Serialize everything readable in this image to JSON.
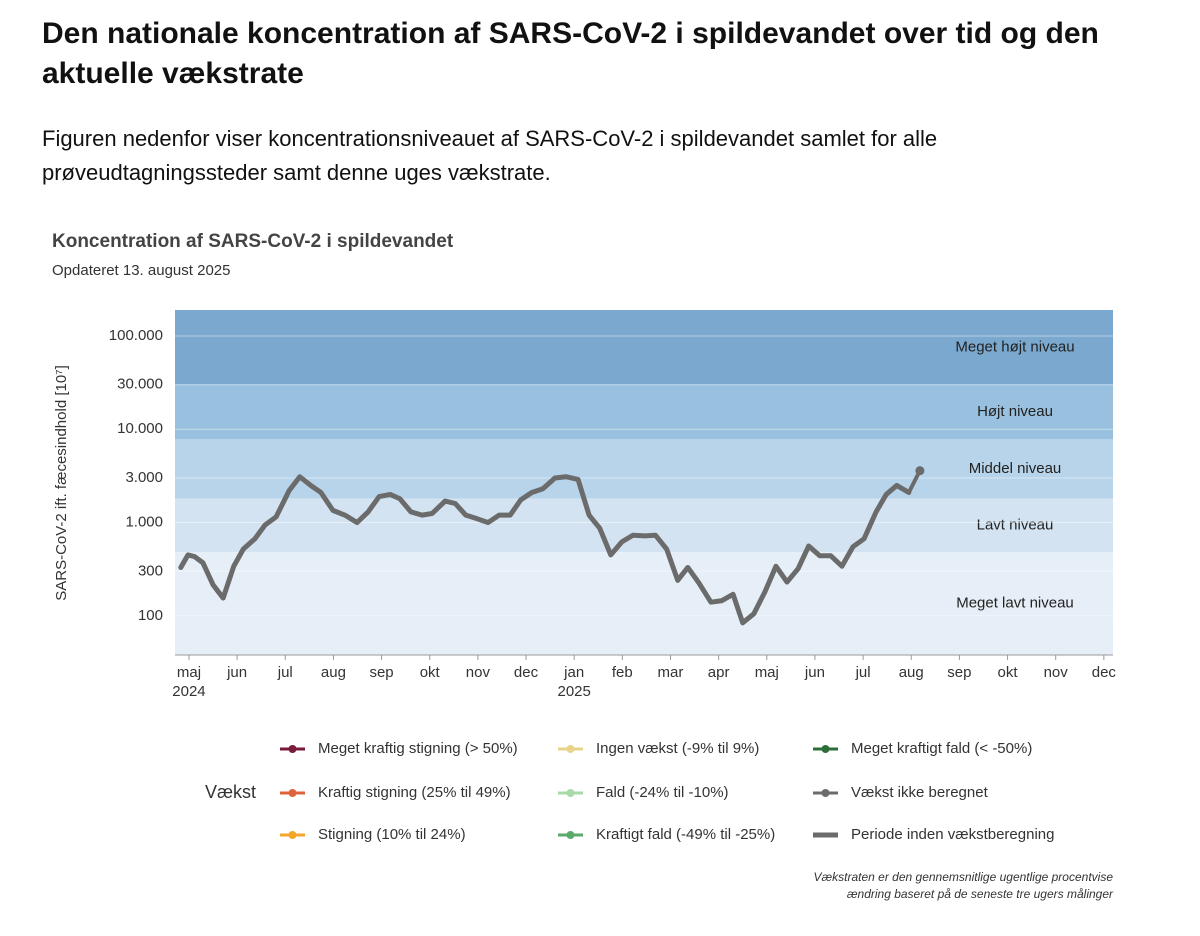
{
  "header": {
    "title": "Den nationale koncentration af SARS-CoV-2 i spildevandet over tid og den aktuelle vækstrate",
    "description": "Figuren nedenfor viser koncentrationsniveauet af SARS-CoV-2 i spildevandet samlet for alle prøveudtagningssteder samt denne uges vækstrate."
  },
  "chart_data": {
    "type": "line",
    "title": "Koncentration af SARS-CoV-2 i spildevandet",
    "subtitle": "Opdateret 13. august 2025",
    "ylabel": "SARS-CoV-2 ift. fæcesindhold [10⁷]",
    "log_y": true,
    "ylim": [
      38,
      190000
    ],
    "yticks": [
      {
        "value": 100000,
        "label": "100.000"
      },
      {
        "value": 30000,
        "label": "30.000"
      },
      {
        "value": 10000,
        "label": "10.000"
      },
      {
        "value": 3000,
        "label": "3.000"
      },
      {
        "value": 1000,
        "label": "1.000"
      },
      300,
      100
    ],
    "grid": true,
    "xlim": [
      3.71,
      23.19
    ],
    "xticks": [
      {
        "value": 4,
        "label": "maj"
      },
      {
        "value": 5,
        "label": "jun"
      },
      {
        "value": 6,
        "label": "jul"
      },
      {
        "value": 7,
        "label": "aug"
      },
      {
        "value": 8,
        "label": "sep"
      },
      {
        "value": 9,
        "label": "okt"
      },
      {
        "value": 10,
        "label": "nov"
      },
      {
        "value": 11,
        "label": "dec"
      },
      {
        "value": 12,
        "label": "jan"
      },
      {
        "value": 13,
        "label": "feb"
      },
      {
        "value": 14,
        "label": "mar"
      },
      {
        "value": 15,
        "label": "apr"
      },
      {
        "value": 16,
        "label": "maj"
      },
      {
        "value": 17,
        "label": "jun"
      },
      {
        "value": 18,
        "label": "jul"
      },
      {
        "value": 19,
        "label": "aug"
      },
      {
        "value": 20,
        "label": "sep"
      },
      {
        "value": 21,
        "label": "okt"
      },
      {
        "value": 22,
        "label": "nov"
      },
      {
        "value": 23,
        "label": "dec"
      }
    ],
    "year_labels": [
      {
        "value": 4,
        "label": "2024"
      },
      {
        "value": 12,
        "label": "2025"
      }
    ],
    "bands": [
      {
        "name": "Meget højt niveau",
        "from": 30000,
        "to": 190000,
        "color": "#7aa8cf"
      },
      {
        "name": "Højt niveau",
        "from": 7800,
        "to": 30000,
        "color": "#99c0de"
      },
      {
        "name": "Middel niveau",
        "from": 1800,
        "to": 7800,
        "color": "#b8d4ea"
      },
      {
        "name": "Lavt niveau",
        "from": 480,
        "to": 1800,
        "color": "#d3e3f2"
      },
      {
        "name": "Meget lavt niveau",
        "from": 38,
        "to": 480,
        "color": "#e6eff8"
      }
    ],
    "series": [
      {
        "name": "Periode inden vækstberegning",
        "color": "#6b6b6b",
        "x": [
          3.83,
          3.98,
          4.12,
          4.29,
          4.5,
          4.71,
          4.93,
          5.13,
          5.37,
          5.58,
          5.81,
          6.08,
          6.3,
          6.53,
          6.74,
          6.99,
          7.24,
          7.49,
          7.72,
          7.95,
          8.18,
          8.38,
          8.61,
          8.84,
          9.05,
          9.32,
          9.53,
          9.75,
          9.98,
          10.21,
          10.44,
          10.67,
          10.89,
          11.12,
          11.35,
          11.6,
          11.83,
          12.08,
          12.31,
          12.53,
          12.76,
          12.99,
          13.22,
          13.47,
          13.69,
          13.92,
          14.15,
          14.36,
          14.59,
          14.84,
          15.06,
          15.3,
          15.5,
          15.73,
          15.96,
          16.19,
          16.42,
          16.65,
          16.87,
          17.1,
          17.33,
          17.56,
          17.79,
          18.02,
          18.27,
          18.48,
          18.7,
          18.95
        ],
        "values": [
          330,
          450,
          430,
          370,
          215,
          155,
          340,
          520,
          670,
          940,
          1150,
          2200,
          3100,
          2500,
          2100,
          1350,
          1200,
          1000,
          1300,
          1900,
          2000,
          1800,
          1300,
          1200,
          1250,
          1700,
          1600,
          1200,
          1100,
          1000,
          1200,
          1200,
          1750,
          2100,
          2300,
          3000,
          3100,
          2900,
          1200,
          870,
          450,
          620,
          730,
          720,
          730,
          520,
          240,
          330,
          225,
          140,
          145,
          170,
          84,
          105,
          180,
          340,
          230,
          320,
          560,
          440,
          440,
          340,
          550,
          670,
          1300,
          2000,
          2500,
          2100
        ]
      },
      {
        "name": "Vækst ikke beregnet",
        "color": "#6b6b6b",
        "x": [
          19.18
        ],
        "values": [
          3600
        ]
      }
    ],
    "legend_title": "Vækst",
    "growth_categories": [
      {
        "name": "Meget kraftig stigning (> 50%)",
        "color": "#7b1a3a"
      },
      {
        "name": "Kraftig stigning (25% til 49%)",
        "color": "#e0623c"
      },
      {
        "name": "Stigning (10% til 24%)",
        "color": "#f4a52a"
      },
      {
        "name": "Ingen vækst (-9% til 9%)",
        "color": "#e8d488"
      },
      {
        "name": "Fald (-24% til -10%)",
        "color": "#a8dba8"
      },
      {
        "name": "Kraftigt fald (-49% til -25%)",
        "color": "#5aab6a"
      },
      {
        "name": "Meget kraftigt fald (< -50%)",
        "color": "#2e6e3a"
      }
    ],
    "note": [
      "Vækstraten er den gennemsnitlige ugentlige procentvise",
      "ændring baseret på de seneste tre ugers målinger"
    ]
  }
}
